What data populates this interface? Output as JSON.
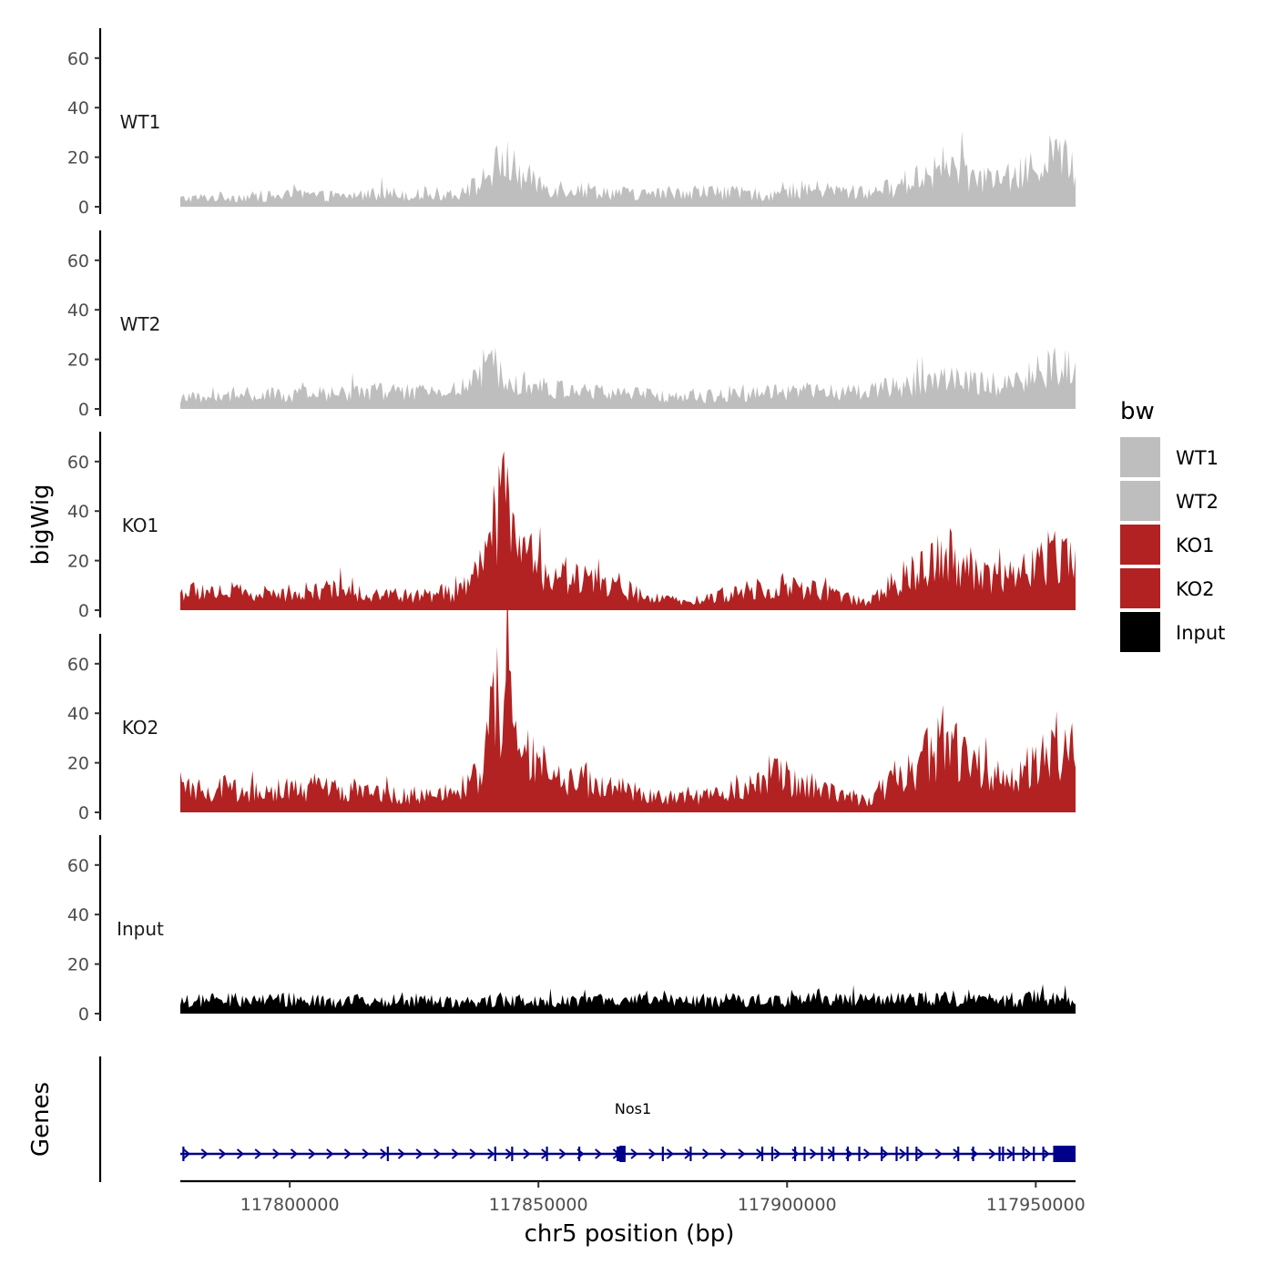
{
  "chart_data": {
    "type": "area",
    "ylabel": "bigWig",
    "xlabel": "chr5 position (bp)",
    "xlim": [
      117778000,
      117958000
    ],
    "ylim": [
      -3,
      72
    ],
    "yticks": [
      0,
      20,
      40,
      60
    ],
    "xticks": [
      117800000,
      117850000,
      117900000,
      117950000
    ],
    "xtick_labels": [
      "117800000",
      "117850000",
      "117900000",
      "117950000"
    ],
    "ytick_labels": [
      "0",
      "20",
      "40",
      "60"
    ],
    "legend": {
      "title": "bw",
      "position": "right",
      "entries": [
        {
          "name": "WT1",
          "color": "#bebebe"
        },
        {
          "name": "WT2",
          "color": "#bebebe"
        },
        {
          "name": "KO1",
          "color": "#b22222"
        },
        {
          "name": "KO2",
          "color": "#b22222"
        },
        {
          "name": "Input",
          "color": "#000000"
        }
      ]
    },
    "x": [
      117778000,
      117786000,
      117794000,
      117802000,
      117810000,
      117818000,
      117826000,
      117834000,
      117838000,
      117840000,
      117842000,
      117843500,
      117846000,
      117852000,
      117858000,
      117866000,
      117872000,
      117880000,
      117888000,
      117896000,
      117904000,
      117910000,
      117916000,
      117922000,
      117926000,
      117930000,
      117932000,
      117936000,
      117942000,
      117946000,
      117950000,
      117954000,
      117958000
    ],
    "series": [
      {
        "name": "WT1",
        "color": "#bebebe",
        "values": [
          4,
          5,
          5,
          6,
          5,
          7,
          6,
          7,
          11,
          17,
          21,
          24,
          16,
          10,
          9,
          7,
          6,
          8,
          7,
          6,
          9,
          8,
          7,
          10,
          15,
          18,
          21,
          16,
          13,
          15,
          20,
          26,
          19
        ]
      },
      {
        "name": "WT2",
        "color": "#bebebe",
        "values": [
          5,
          6,
          7,
          7,
          8,
          9,
          8,
          10,
          14,
          19,
          23,
          21,
          15,
          10,
          9,
          8,
          7,
          6,
          7,
          8,
          9,
          8,
          9,
          11,
          13,
          15,
          17,
          13,
          12,
          15,
          18,
          21,
          18
        ]
      },
      {
        "name": "KO1",
        "color": "#b22222",
        "values": [
          9,
          10,
          8,
          9,
          10,
          8,
          7,
          9,
          18,
          33,
          52,
          55,
          30,
          19,
          17,
          12,
          6,
          4,
          8,
          13,
          11,
          8,
          4,
          14,
          21,
          27,
          31,
          22,
          18,
          16,
          24,
          31,
          25
        ]
      },
      {
        "name": "KO2",
        "color": "#b22222",
        "values": [
          11,
          12,
          10,
          12,
          11,
          10,
          8,
          9,
          20,
          38,
          58,
          65,
          32,
          18,
          16,
          13,
          8,
          7,
          10,
          20,
          14,
          10,
          6,
          18,
          24,
          33,
          40,
          24,
          20,
          17,
          27,
          34,
          29
        ]
      },
      {
        "name": "Input",
        "color": "#000000",
        "values": [
          6,
          7,
          7,
          7,
          6,
          7,
          7,
          6,
          6,
          7,
          7,
          6,
          7,
          7,
          7,
          6,
          7,
          6,
          7,
          7,
          8,
          7,
          7,
          7,
          7,
          7,
          8,
          7,
          7,
          7,
          8,
          7,
          7
        ]
      }
    ],
    "gene_track": {
      "title": "Genes",
      "gene": "Nos1",
      "strand": "+",
      "start": 117778000,
      "end": 117958000,
      "color": "#00008b",
      "exons": [
        117778600,
        117819700,
        117841300,
        117844700,
        117851700,
        117858200,
        117865900,
        117866200,
        117866500,
        117867300,
        117875000,
        117880600,
        117895000,
        117897000,
        117901600,
        117903500,
        117907000,
        117909300,
        117912200,
        117914500,
        117919000,
        117922000,
        117924200,
        117926000,
        117934400,
        117937400,
        117942700,
        117943400,
        117945500,
        117947500,
        117949600,
        117951500
      ],
      "thick_exons": [
        [
          117866300,
          117867500
        ],
        [
          117953500,
          117958000
        ]
      ]
    }
  }
}
